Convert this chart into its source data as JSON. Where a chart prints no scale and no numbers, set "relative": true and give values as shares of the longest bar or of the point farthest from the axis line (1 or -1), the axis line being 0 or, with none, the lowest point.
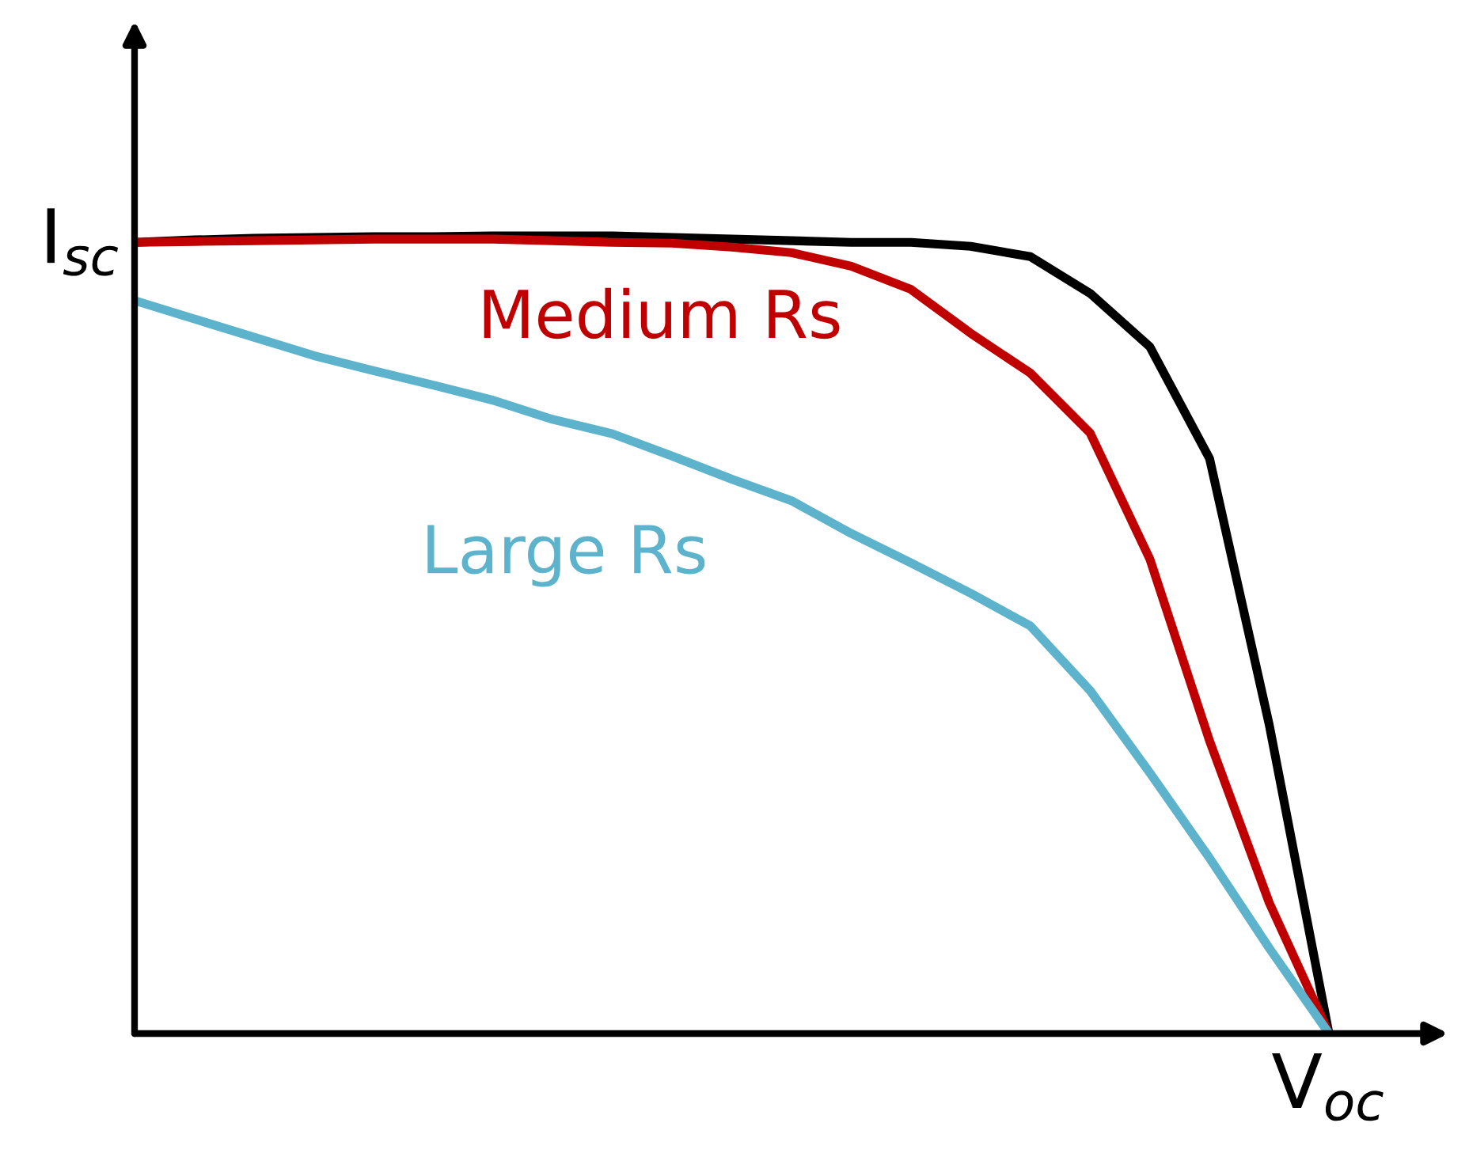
{
  "chart_data": {
    "type": "line",
    "relative": true,
    "legend": false,
    "marker": "none",
    "line_style": "solid",
    "annotations": [
      "I$_{sc}$",
      "V$_{oc}$"
    ],
    "categories": [
      null,
      null,
      null,
      null,
      null,
      null,
      null,
      null,
      null,
      null,
      null,
      null,
      null,
      null,
      null,
      null,
      null,
      null,
      null,
      null,
      null
    ],
    "series": [
      {
        "color": "#000000",
        "values": [
          0.992,
          0.995,
          0.997,
          0.998,
          0.999,
          0.999,
          1,
          1,
          1,
          0.998,
          0.996,
          0.994,
          0.992,
          0.992,
          0.987,
          0.974,
          0.928,
          0.861,
          0.721,
          0.387,
          0
        ]
      },
      {
        "name": "Medium Rs",
        "color": "#c00000",
        "values": [
          0.992,
          0.993,
          0.994,
          0.995,
          0.996,
          0.996,
          0.996,
          0.994,
          0.992,
          0.991,
          0.986,
          0.979,
          0.962,
          0.933,
          0.878,
          0.828,
          0.753,
          0.595,
          0.367,
          0.164,
          0
        ]
      },
      {
        "name": "Large Rs",
        "color": "#5db3cc",
        "values": [
          0.919,
          0.896,
          0.873,
          0.85,
          0.831,
          0.813,
          0.794,
          0.77,
          0.752,
          0.724,
          0.695,
          0.668,
          0.627,
          0.59,
          0.552,
          0.511,
          0.43,
          0.327,
          0.22,
          0.107,
          0
        ]
      }
    ]
  }
}
